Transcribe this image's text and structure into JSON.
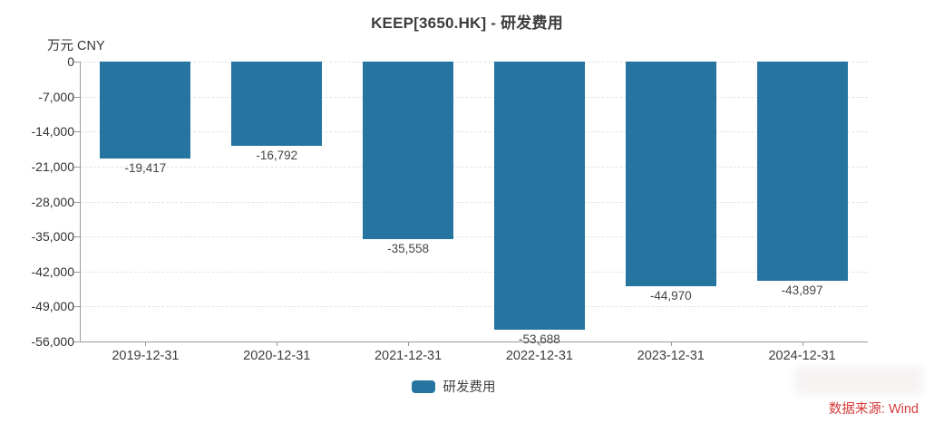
{
  "chart_data": {
    "type": "bar",
    "title": "KEEP[3650.HK] - 研发费用",
    "y_unit_label": "万元 CNY",
    "categories": [
      "2019-12-31",
      "2020-12-31",
      "2021-12-31",
      "2022-12-31",
      "2023-12-31",
      "2024-12-31"
    ],
    "series": [
      {
        "name": "研发费用",
        "values": [
          -19417,
          -16792,
          -35558,
          -53688,
          -44970,
          -43897
        ]
      }
    ],
    "data_labels": [
      "-19,417",
      "-16,792",
      "-35,558",
      "-53,688",
      "-44,970",
      "-43,897"
    ],
    "y_ticks": [
      "0",
      "-7,000",
      "-14,000",
      "-21,000",
      "-28,000",
      "-35,000",
      "-42,000",
      "-49,000",
      "-56,000"
    ],
    "ylim": [
      -56000,
      0
    ],
    "y_tick_step": 7000,
    "grid": "horizontal-dashed",
    "legend": [
      "研发费用"
    ],
    "legend_position": "bottom-center",
    "bar_color": "#2575a0",
    "axis_color": "#9a9a9a",
    "gridline_color": "#e3e3e3"
  },
  "footer": {
    "source_text": "数据来源: Wind",
    "source_color": "#d63b3b"
  }
}
